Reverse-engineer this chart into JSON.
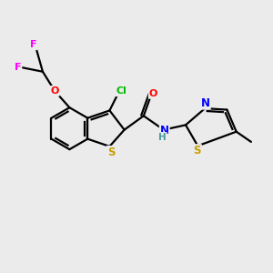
{
  "bg_color": "#ebebeb",
  "bond_color": "#000000",
  "atom_colors": {
    "S": "#c8a000",
    "N": "#0000ff",
    "O": "#ff0000",
    "Cl": "#00bb00",
    "F": "#ff00ff",
    "C": "#000000",
    "H": "#4a9a9a"
  },
  "figsize": [
    3.0,
    3.0
  ],
  "dpi": 100,
  "xlim": [
    0,
    10
  ],
  "ylim": [
    0,
    10
  ]
}
